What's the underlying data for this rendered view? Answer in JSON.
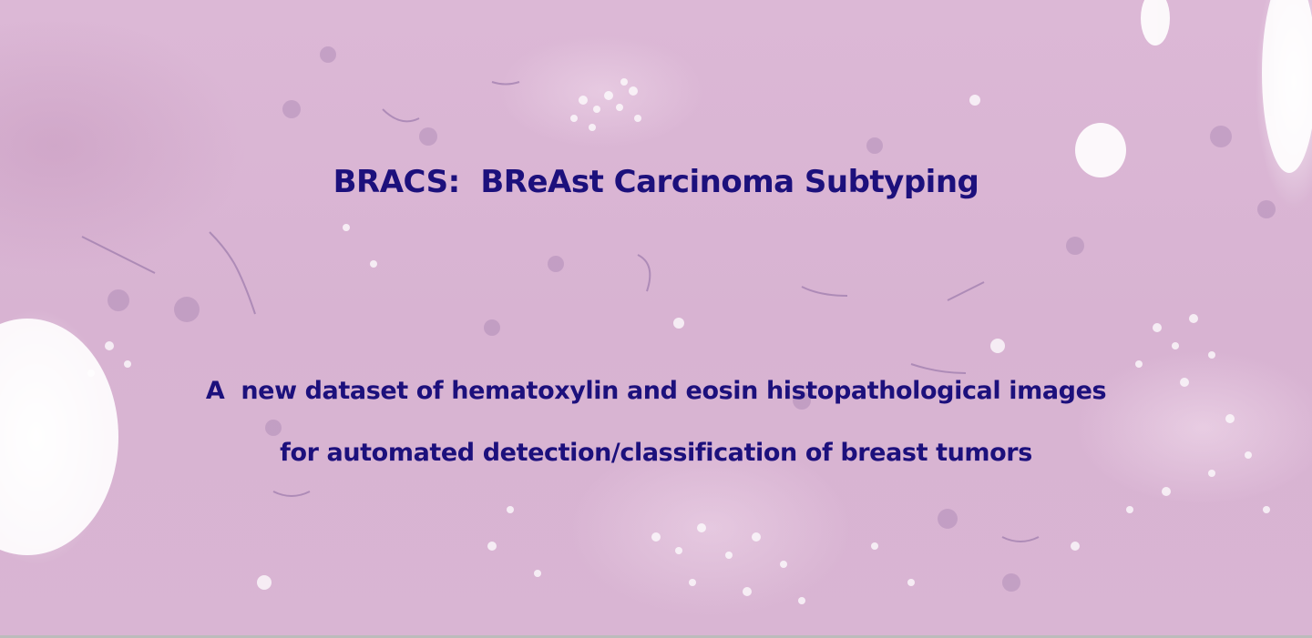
{
  "hero": {
    "title": "BRACS:  BReAst Carcinoma Subtyping",
    "subtitle_line1": "A  new dataset of hematoxylin and eosin histopathological images",
    "subtitle_line2": "for automated detection/classification of breast tumors"
  },
  "colors": {
    "text": "#1c107c",
    "tissue": "#dcb8d6"
  }
}
